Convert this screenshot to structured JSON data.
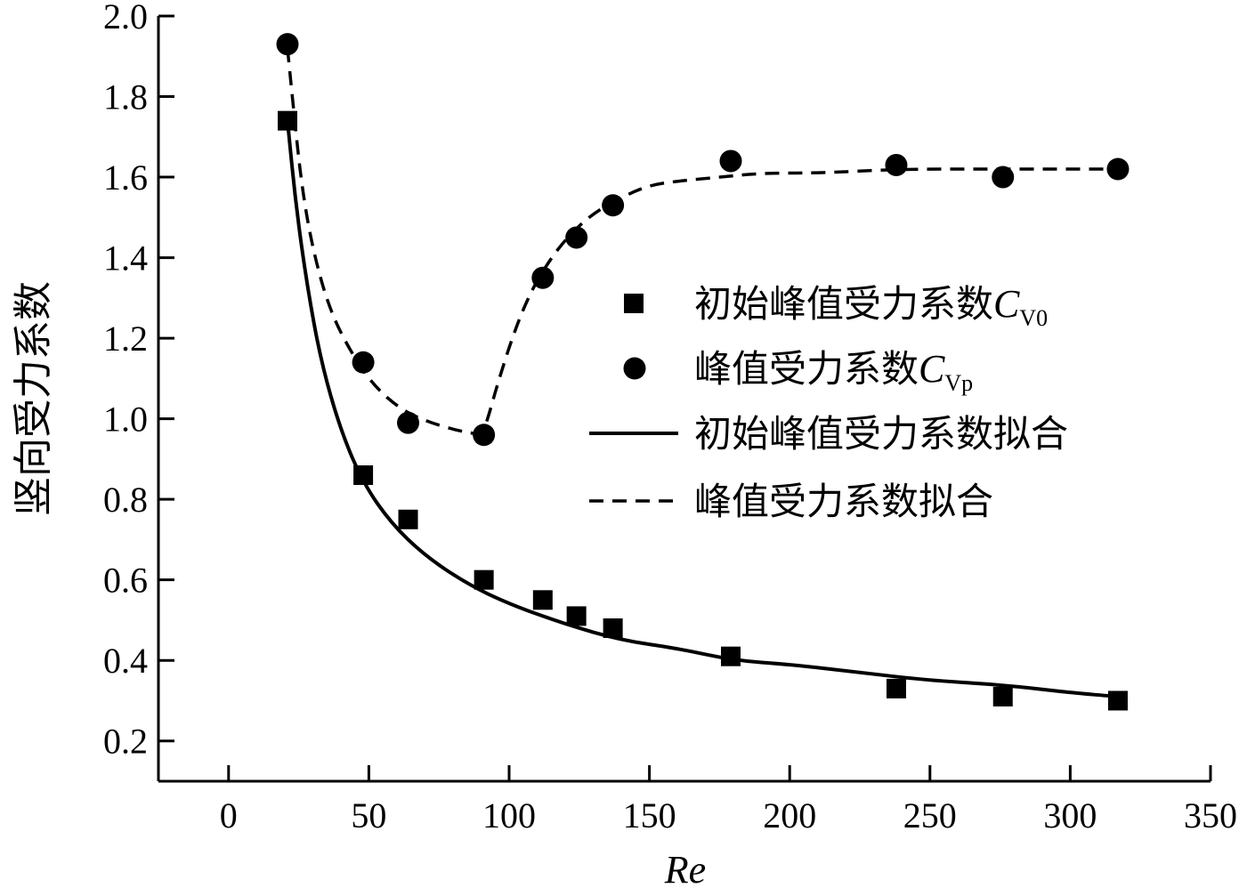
{
  "chart_data": {
    "type": "scatter",
    "xlabel": "Re",
    "ylabel": "竖向受力系数",
    "xlim": [
      -25,
      350
    ],
    "ylim": [
      0.1,
      2.0
    ],
    "xticks": [
      0,
      50,
      100,
      150,
      200,
      250,
      300,
      350
    ],
    "yticks": [
      0.2,
      0.4,
      0.6,
      0.8,
      1.0,
      1.2,
      1.4,
      1.6,
      1.8,
      2.0
    ],
    "xtick_labels": [
      "0",
      "50",
      "100",
      "150",
      "200",
      "250",
      "300",
      "350"
    ],
    "ytick_labels": [
      "0.2",
      "0.4",
      "0.6",
      "0.8",
      "1.0",
      "1.2",
      "1.4",
      "1.6",
      "1.8",
      "2.0"
    ],
    "grid": false,
    "legend_position": "center-right",
    "series": [
      {
        "name": "初始峰值受力系数",
        "symbol": "C",
        "subscript": "V0",
        "marker": "square",
        "x": [
          21,
          48,
          64,
          91,
          112,
          124,
          137,
          179,
          238,
          276,
          317
        ],
        "y": [
          1.74,
          0.86,
          0.75,
          0.6,
          0.55,
          0.51,
          0.48,
          0.41,
          0.33,
          0.31,
          0.3
        ]
      },
      {
        "name": "峰值受力系数",
        "symbol": "C",
        "subscript": "Vp",
        "marker": "circle",
        "x": [
          21,
          48,
          64,
          91,
          112,
          124,
          137,
          179,
          238,
          276,
          317
        ],
        "y": [
          1.93,
          1.14,
          0.99,
          0.96,
          1.35,
          1.45,
          1.53,
          1.64,
          1.63,
          1.6,
          1.62
        ]
      },
      {
        "name": "初始峰值受力系数拟合",
        "line": "solid",
        "x": [
          21,
          24,
          28,
          33,
          40,
          48,
          58,
          70,
          85,
          100,
          120,
          140,
          160,
          180,
          200,
          225,
          250,
          275,
          300,
          317
        ],
        "y": [
          1.74,
          1.53,
          1.33,
          1.14,
          0.97,
          0.84,
          0.74,
          0.66,
          0.59,
          0.54,
          0.49,
          0.45,
          0.43,
          0.4,
          0.39,
          0.37,
          0.35,
          0.34,
          0.32,
          0.31
        ]
      },
      {
        "name": "峰值受力系数拟合",
        "line": "dashed",
        "x": [
          21,
          23,
          26,
          30,
          36,
          44,
          52,
          62,
          72,
          82,
          90,
          92,
          96,
          102,
          108,
          115,
          122,
          130,
          140,
          150,
          160,
          175,
          190,
          210,
          240,
          270,
          300,
          317
        ],
        "y": [
          1.92,
          1.78,
          1.58,
          1.42,
          1.27,
          1.16,
          1.08,
          1.02,
          0.99,
          0.97,
          0.96,
          0.99,
          1.09,
          1.22,
          1.32,
          1.4,
          1.46,
          1.51,
          1.55,
          1.58,
          1.59,
          1.6,
          1.61,
          1.61,
          1.62,
          1.62,
          1.62,
          1.62
        ]
      }
    ]
  }
}
